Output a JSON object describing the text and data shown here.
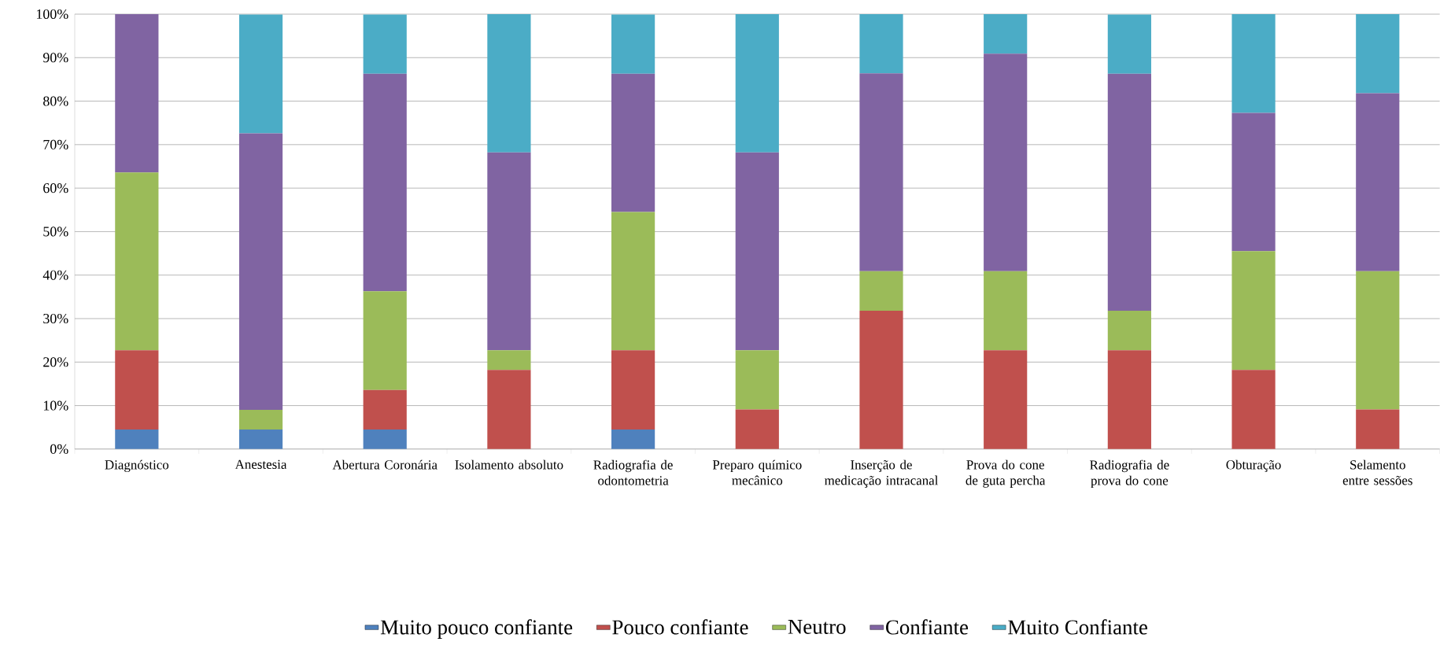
{
  "chart_data": {
    "type": "bar",
    "stacked": true,
    "grid": "y",
    "legend": "bottom",
    "categories": [
      "Diagnóstico",
      "Anestesia",
      "Abertura Coronária",
      "Isolamento absoluto",
      "Radiografia de odontometria",
      "Preparo químico mecânico",
      "Inserção de medicação intracanal",
      "Prova do cone de guta percha",
      "Radiografia de prova do cone",
      "Obturação",
      "Selamento entre sessões"
    ],
    "series": [
      {
        "name": "Muito pouco confiante",
        "color": "#4f81bd",
        "values": [
          4.5,
          4.5,
          4.5,
          0,
          4.5,
          0,
          0,
          0,
          0,
          0,
          0
        ]
      },
      {
        "name": "Pouco confiante",
        "color": "#c0504d",
        "values": [
          18.2,
          0,
          9.1,
          18.2,
          18.2,
          9.1,
          31.8,
          22.7,
          22.7,
          18.2,
          9.1
        ]
      },
      {
        "name": "Neutro",
        "color": "#9bbb59",
        "values": [
          40.9,
          4.5,
          22.7,
          4.5,
          31.8,
          13.6,
          9.1,
          18.2,
          9.1,
          27.3,
          31.8
        ]
      },
      {
        "name": "Confiante",
        "color": "#8064a2",
        "values": [
          36.4,
          63.6,
          50,
          45.5,
          31.8,
          45.5,
          45.5,
          50,
          54.5,
          31.8,
          40.9
        ]
      },
      {
        "name": "Muito Confiante",
        "color": "#4bacc6",
        "values": [
          0,
          27.3,
          13.6,
          31.8,
          13.6,
          31.8,
          13.6,
          9.1,
          13.6,
          22.7,
          18.2
        ]
      }
    ],
    "ylim": [
      0,
      100
    ],
    "yticks": [
      {
        "value": 0,
        "label": "0%"
      },
      {
        "value": 10,
        "label": "10%"
      },
      {
        "value": 20,
        "label": "20%"
      },
      {
        "value": 30,
        "label": "30%"
      },
      {
        "value": 40,
        "label": "40%"
      },
      {
        "value": 50,
        "label": "50%"
      },
      {
        "value": 60,
        "label": "60%"
      },
      {
        "value": 70,
        "label": "70%"
      },
      {
        "value": 80,
        "label": "80%"
      },
      {
        "value": 90,
        "label": "90%"
      },
      {
        "value": 100,
        "label": "100%"
      }
    ]
  }
}
